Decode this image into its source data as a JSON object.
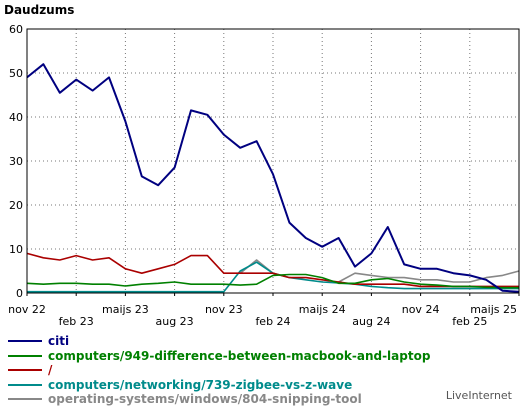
{
  "chart_data": {
    "type": "line",
    "title": "Daudzums",
    "ylim": [
      0,
      60
    ],
    "yticks": [
      0,
      10,
      20,
      30,
      40,
      50,
      60
    ],
    "xlabels": [
      "nov 22",
      "feb 23",
      "maijs 23",
      "aug 23",
      "nov 23",
      "feb 24",
      "maijs 24",
      "aug 24",
      "nov 24",
      "feb 25",
      "maijs 25"
    ],
    "xlabel_rows": [
      0,
      1,
      0,
      1,
      0,
      1,
      0,
      1,
      0,
      1,
      0
    ],
    "grid": true,
    "legend_position": "bottom",
    "series": [
      {
        "name": "citi",
        "color": "#000080",
        "values": [
          49,
          52,
          45.5,
          48.5,
          46,
          49,
          39,
          26.5,
          24.5,
          28.5,
          41.5,
          40.5,
          36,
          33,
          34.5,
          27,
          16,
          12.5,
          10.5,
          12.5,
          6,
          9,
          15,
          6.5,
          5.5,
          5.5,
          4.5,
          4,
          3,
          0.5,
          0.3
        ]
      },
      {
        "name": "computers/949-difference-between-macbook-and-laptop",
        "color": "#008000",
        "values": [
          2.2,
          2,
          2.2,
          2.2,
          2,
          2,
          1.6,
          2,
          2.2,
          2.5,
          2,
          2,
          2,
          1.8,
          2,
          4,
          4.2,
          4.2,
          3.5,
          2.2,
          2.2,
          3,
          3.3,
          2.5,
          2,
          1.8,
          1.5,
          1.5,
          1.3,
          1.2,
          1.2
        ]
      },
      {
        "name": "/",
        "color": "#aa0000",
        "values": [
          9,
          8,
          7.5,
          8.5,
          7.5,
          8,
          5.5,
          4.5,
          5.5,
          6.5,
          8.5,
          8.5,
          4.5,
          4.5,
          4.5,
          4.5,
          3.5,
          3.5,
          3,
          2.5,
          2,
          2,
          2,
          2,
          1.5,
          1.5,
          1.5,
          1.5,
          1.5,
          1.5,
          1.5
        ]
      },
      {
        "name": "computers/networking/739-zigbee-vs-z-wave",
        "color": "#008b8b",
        "values": [
          0.3,
          0.3,
          0.3,
          0.3,
          0.3,
          0.3,
          0.3,
          0.3,
          0.3,
          0.3,
          0.3,
          0.3,
          0.3,
          5,
          7,
          4.5,
          3.5,
          3,
          2.5,
          2.3,
          2,
          1.5,
          1.2,
          1,
          1,
          1,
          1,
          1,
          1,
          1,
          1
        ]
      },
      {
        "name": "operating-systems/windows/804-snipping-tool",
        "color": "#888888",
        "values": [
          null,
          null,
          null,
          null,
          null,
          null,
          null,
          null,
          null,
          null,
          null,
          null,
          null,
          4.5,
          7.5,
          4.5,
          null,
          null,
          null,
          2.5,
          4.5,
          4,
          3.5,
          3.5,
          3,
          3,
          2.5,
          2.5,
          3.5,
          4,
          5
        ]
      }
    ]
  },
  "brand": "LiveInternet"
}
